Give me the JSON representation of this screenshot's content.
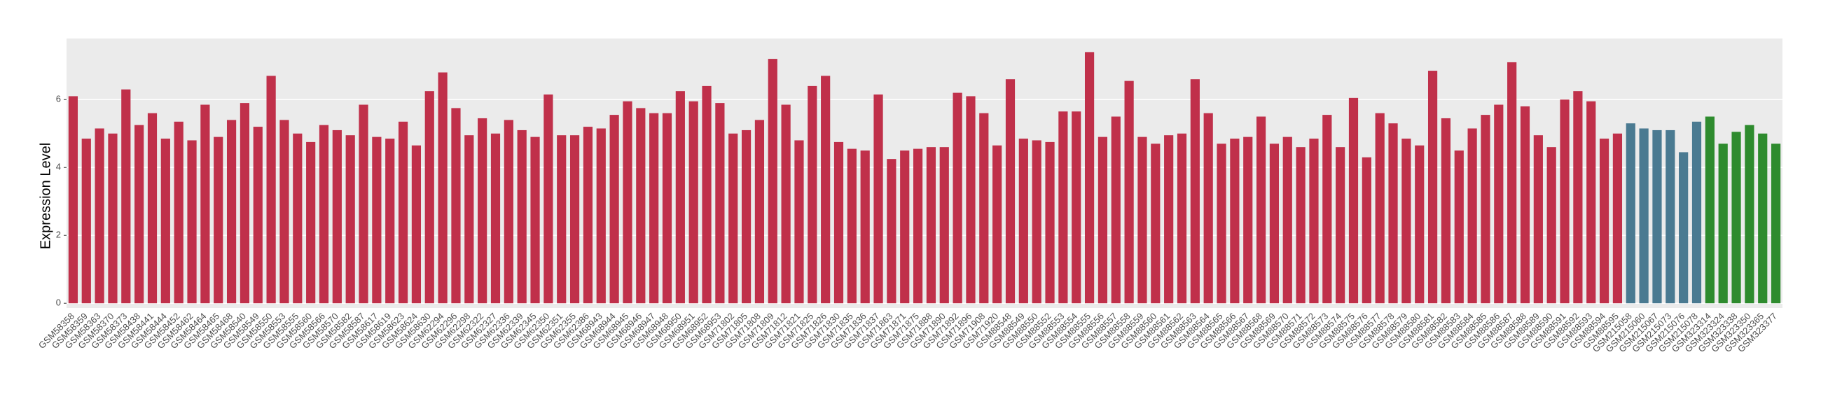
{
  "chart_data": {
    "type": "bar",
    "y_label": "Expression Level",
    "ylim": [
      -0.14,
      7.8
    ],
    "yticks": [
      0,
      2,
      4,
      6
    ],
    "grid": true,
    "series": [
      {
        "color": "#c0304a",
        "categories": [
          "GSM58358",
          "GSM58359",
          "GSM58363",
          "GSM58370",
          "GSM58373",
          "GSM58438",
          "GSM58441",
          "GSM58444",
          "GSM58452",
          "GSM58462",
          "GSM58464",
          "GSM58465",
          "GSM58468",
          "GSM58540",
          "GSM58549",
          "GSM58550",
          "GSM58553",
          "GSM58555",
          "GSM58560",
          "GSM58566",
          "GSM58570",
          "GSM58582",
          "GSM58587",
          "GSM58617",
          "GSM58619",
          "GSM58623",
          "GSM58624",
          "GSM58630",
          "GSM62294",
          "GSM62296",
          "GSM62298",
          "GSM62322",
          "GSM62327",
          "GSM62336",
          "GSM62339",
          "GSM62345",
          "GSM62350",
          "GSM62351",
          "GSM62355",
          "GSM62386",
          "GSM68943",
          "GSM68944",
          "GSM68945",
          "GSM68946",
          "GSM68947",
          "GSM68948",
          "GSM68950",
          "GSM68951",
          "GSM68952",
          "GSM68953",
          "GSM71802",
          "GSM71805",
          "GSM71808",
          "GSM71809",
          "GSM71812",
          "GSM71821",
          "GSM71825",
          "GSM71826",
          "GSM71830",
          "GSM71835",
          "GSM71836",
          "GSM71837",
          "GSM71863",
          "GSM71871",
          "GSM71875",
          "GSM71888",
          "GSM71890",
          "GSM71892",
          "GSM71896",
          "GSM71908",
          "GSM71920",
          "GSM88548",
          "GSM88549",
          "GSM88550",
          "GSM88552",
          "GSM88553",
          "GSM88554",
          "GSM88555",
          "GSM88556",
          "GSM88557",
          "GSM88558",
          "GSM88559",
          "GSM88560",
          "GSM88561",
          "GSM88562",
          "GSM88563",
          "GSM88564",
          "GSM88565",
          "GSM88566",
          "GSM88567",
          "GSM88568",
          "GSM88569",
          "GSM88570",
          "GSM88571",
          "GSM88572",
          "GSM88573",
          "GSM88574",
          "GSM88575",
          "GSM88576",
          "GSM88577",
          "GSM88578",
          "GSM88579",
          "GSM88580",
          "GSM88581",
          "GSM88582",
          "GSM88583",
          "GSM88584",
          "GSM88585",
          "GSM88586",
          "GSM88587",
          "GSM88588",
          "GSM88589",
          "GSM88590",
          "GSM88591",
          "GSM88592",
          "GSM88593",
          "GSM88594",
          "GSM88595"
        ],
        "values": [
          6.1,
          4.85,
          5.15,
          5.0,
          6.3,
          5.25,
          5.6,
          4.85,
          5.35,
          4.8,
          5.85,
          4.9,
          5.4,
          5.9,
          5.2,
          6.7,
          5.4,
          5.0,
          4.75,
          5.25,
          5.1,
          4.95,
          5.85,
          4.9,
          4.85,
          5.35,
          4.65,
          6.25,
          6.8,
          5.75,
          4.95,
          5.45,
          5.0,
          5.4,
          5.1,
          4.9,
          6.15,
          4.95,
          4.95,
          5.2,
          5.15,
          5.55,
          5.95,
          5.75,
          5.6,
          5.6,
          6.25,
          5.95,
          6.4,
          5.9,
          5.0,
          5.1,
          5.4,
          7.2,
          5.85,
          4.8,
          6.4,
          6.7,
          4.75,
          4.55,
          4.5,
          6.15,
          4.25,
          4.5,
          4.55,
          4.6,
          4.6,
          6.2,
          6.1,
          5.6,
          4.65,
          6.6,
          4.85,
          4.8,
          4.75,
          5.65,
          5.65,
          7.4,
          4.9,
          5.5,
          6.55,
          4.9,
          4.7,
          4.95,
          5.0,
          6.6,
          5.6,
          4.7,
          4.85,
          4.9,
          5.5,
          4.7,
          4.9,
          4.6,
          4.85,
          5.55,
          4.6,
          6.05,
          4.3,
          5.6,
          5.3,
          4.85,
          4.65,
          6.85,
          5.45,
          4.5,
          5.15,
          5.55,
          5.85,
          7.1,
          5.8,
          4.95,
          4.6,
          6.0,
          6.25,
          5.95,
          4.85,
          5.0
        ]
      },
      {
        "color": "#4a7a91",
        "categories": [
          "GSM215058",
          "GSM215060",
          "GSM215067",
          "GSM215073",
          "GSM215076",
          "GSM215078"
        ],
        "values": [
          5.3,
          5.15,
          5.1,
          5.1,
          4.45,
          5.35
        ]
      },
      {
        "color": "#2e8b2e",
        "categories": [
          "GSM323314",
          "GSM323324",
          "GSM323338",
          "GSM323350",
          "GSM323365",
          "GSM323377"
        ],
        "values": [
          5.5,
          4.7,
          5.05,
          5.25,
          5.0,
          4.7
        ]
      }
    ]
  }
}
